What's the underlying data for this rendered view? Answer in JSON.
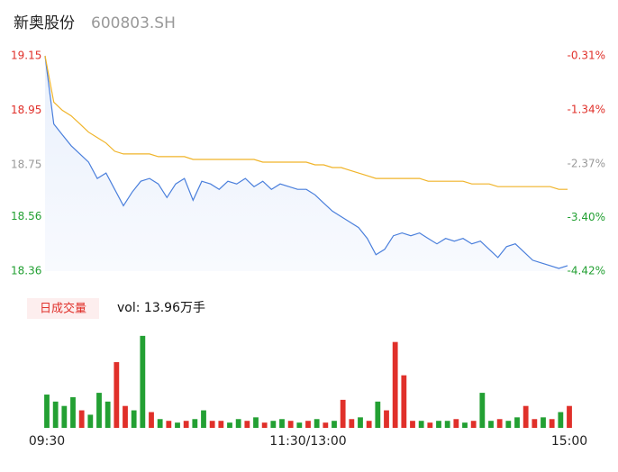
{
  "header": {
    "name": "新奥股份",
    "code": "600803.SH"
  },
  "chart_data": [
    {
      "type": "line",
      "xlim": [
        0,
        60
      ],
      "ylim": [
        18.36,
        19.15
      ],
      "yticks": [
        19.15,
        18.95,
        18.75,
        18.56,
        18.36
      ],
      "ytick_colors": [
        "#e0302a",
        "#e0302a",
        "#999999",
        "#23a033",
        "#23a033"
      ],
      "y2lim": [
        -4.42,
        -0.31
      ],
      "y2ticks": [
        {
          "value": -0.31,
          "label": "-0.31%"
        },
        {
          "value": -1.34,
          "label": "-1.34%"
        },
        {
          "value": -2.37,
          "label": "-2.37%"
        },
        {
          "value": -3.4,
          "label": "-3.40%"
        },
        {
          "value": -4.42,
          "label": "-4.42%"
        }
      ],
      "y2tick_colors": [
        "#e0302a",
        "#e0302a",
        "#999999",
        "#23a033",
        "#23a033"
      ],
      "series": [
        {
          "color": "#4a7fdc",
          "area": true,
          "values": [
            19.15,
            18.9,
            18.86,
            18.82,
            18.79,
            18.76,
            18.7,
            18.72,
            18.66,
            18.6,
            18.65,
            18.69,
            18.7,
            18.68,
            18.63,
            18.68,
            18.7,
            18.62,
            18.69,
            18.68,
            18.66,
            18.69,
            18.68,
            18.7,
            18.67,
            18.69,
            18.66,
            18.68,
            18.67,
            18.66,
            18.66,
            18.64,
            18.61,
            18.58,
            18.56,
            18.54,
            18.52,
            18.48,
            18.42,
            18.44,
            18.49,
            18.5,
            18.49,
            18.5,
            18.48,
            18.46,
            18.48,
            18.47,
            18.48,
            18.46,
            18.47,
            18.44,
            18.41,
            18.45,
            18.46,
            18.43,
            18.4,
            18.39,
            18.38,
            18.37,
            18.38
          ]
        },
        {
          "color": "#f0b429",
          "values": [
            19.15,
            18.98,
            18.95,
            18.93,
            18.9,
            18.87,
            18.85,
            18.83,
            18.8,
            18.79,
            18.79,
            18.79,
            18.79,
            18.78,
            18.78,
            18.78,
            18.78,
            18.77,
            18.77,
            18.77,
            18.77,
            18.77,
            18.77,
            18.77,
            18.77,
            18.76,
            18.76,
            18.76,
            18.76,
            18.76,
            18.76,
            18.75,
            18.75,
            18.74,
            18.74,
            18.73,
            18.72,
            18.71,
            18.7,
            18.7,
            18.7,
            18.7,
            18.7,
            18.7,
            18.69,
            18.69,
            18.69,
            18.69,
            18.69,
            18.68,
            18.68,
            18.68,
            18.67,
            18.67,
            18.67,
            18.67,
            18.67,
            18.67,
            18.67,
            18.66,
            18.66
          ]
        }
      ]
    },
    {
      "type": "bar",
      "label": "日成交量",
      "annotation": "vol: 13.96万手",
      "xlim": [
        0,
        60
      ],
      "ylim": [
        0,
        110
      ],
      "xticks": [
        {
          "value": 0,
          "label": "09:30"
        },
        {
          "value": 30,
          "label": "11:30/13:00"
        },
        {
          "value": 60,
          "label": "15:00"
        }
      ],
      "values": [
        38,
        30,
        25,
        35,
        20,
        15,
        40,
        30,
        75,
        25,
        20,
        105,
        18,
        10,
        8,
        6,
        8,
        10,
        20,
        8,
        8,
        6,
        10,
        8,
        12,
        6,
        8,
        10,
        8,
        6,
        8,
        10,
        6,
        8,
        32,
        10,
        12,
        8,
        30,
        20,
        98,
        60,
        8,
        8,
        6,
        8,
        8,
        10,
        6,
        8,
        40,
        8,
        10,
        8,
        12,
        25,
        10,
        12,
        10,
        18,
        25
      ],
      "colors": [
        "#23a033",
        "#23a033",
        "#23a033",
        "#23a033",
        "#e0302a",
        "#23a033",
        "#23a033",
        "#23a033",
        "#e0302a",
        "#e0302a",
        "#23a033",
        "#23a033",
        "#e0302a",
        "#23a033",
        "#e0302a",
        "#23a033",
        "#e0302a",
        "#23a033",
        "#23a033",
        "#e0302a",
        "#e0302a",
        "#23a033",
        "#23a033",
        "#e0302a",
        "#23a033",
        "#e0302a",
        "#23a033",
        "#23a033",
        "#e0302a",
        "#23a033",
        "#e0302a",
        "#23a033",
        "#e0302a",
        "#23a033",
        "#e0302a",
        "#e0302a",
        "#23a033",
        "#e0302a",
        "#23a033",
        "#e0302a",
        "#e0302a",
        "#e0302a",
        "#e0302a",
        "#23a033",
        "#e0302a",
        "#23a033",
        "#23a033",
        "#e0302a",
        "#23a033",
        "#e0302a",
        "#23a033",
        "#23a033",
        "#e0302a",
        "#23a033",
        "#23a033",
        "#e0302a",
        "#e0302a",
        "#23a033",
        "#e0302a",
        "#23a033",
        "#e0302a"
      ]
    }
  ]
}
